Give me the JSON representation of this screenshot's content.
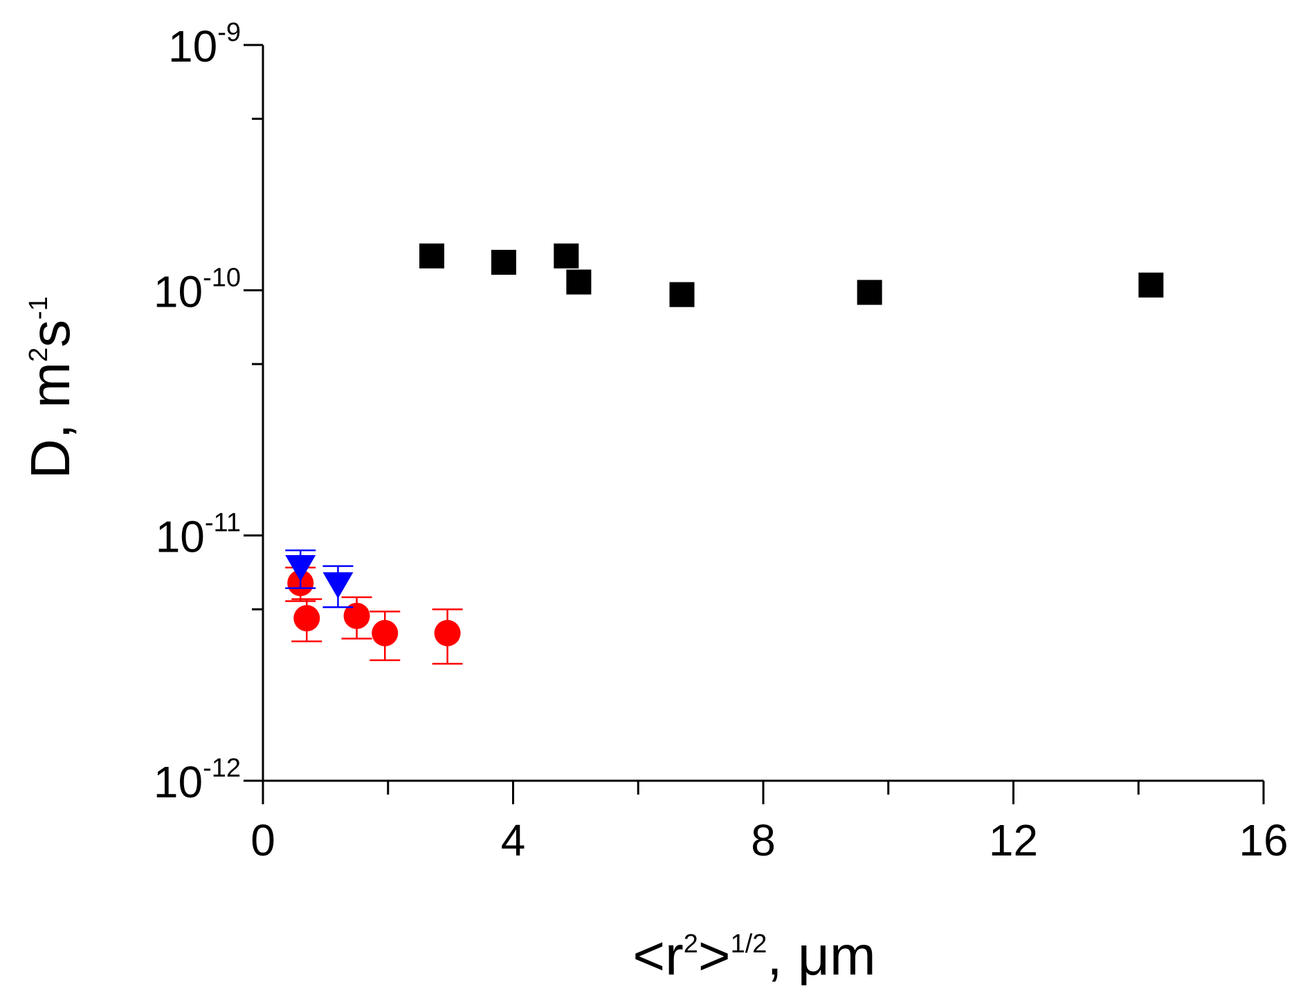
{
  "chart_data": {
    "type": "scatter",
    "xlabel": {
      "base": "<r",
      "sup1": "2",
      "mid": ">",
      "sup2": "1/2",
      "tail": ", μm"
    },
    "ylabel": {
      "base": "D, m",
      "sup1": "2",
      "mid": "s",
      "sup2": "-1"
    },
    "xlim": [
      0,
      16
    ],
    "ylim": [
      1e-12,
      1e-09
    ],
    "yscale": "log",
    "x_ticks": [
      "0",
      "4",
      "8",
      "12",
      "16"
    ],
    "y_ticks": [
      {
        "base": "10",
        "exp": "-12"
      },
      {
        "base": "10",
        "exp": "-11"
      },
      {
        "base": "10",
        "exp": "-10"
      },
      {
        "base": "10",
        "exp": "-9"
      }
    ],
    "series": [
      {
        "marker": "square",
        "color": "#000000",
        "points": [
          {
            "x": 2.7,
            "y": 1.38e-10
          },
          {
            "x": 3.85,
            "y": 1.3e-10
          },
          {
            "x": 4.85,
            "y": 1.38e-10
          },
          {
            "x": 5.05,
            "y": 1.08e-10
          },
          {
            "x": 6.7,
            "y": 9.6e-11
          },
          {
            "x": 9.7,
            "y": 9.8e-11
          },
          {
            "x": 14.2,
            "y": 1.05e-10
          }
        ]
      },
      {
        "marker": "circle",
        "color": "#ff0000",
        "points": [
          {
            "x": 0.6,
            "y": 6.4e-12,
            "err": 1e-12
          },
          {
            "x": 0.7,
            "y": 4.6e-12,
            "err": 9e-13
          },
          {
            "x": 1.5,
            "y": 4.7e-12,
            "err": 9e-13
          },
          {
            "x": 1.95,
            "y": 4e-12,
            "err": 9e-13
          },
          {
            "x": 2.95,
            "y": 4e-12,
            "err": 1e-12
          }
        ]
      },
      {
        "marker": "triangle-down",
        "color": "#0000ff",
        "points": [
          {
            "x": 0.6,
            "y": 7.4e-12,
            "err": 1.3e-12
          },
          {
            "x": 1.2,
            "y": 6.3e-12,
            "err": 1.2e-12
          }
        ]
      }
    ]
  }
}
